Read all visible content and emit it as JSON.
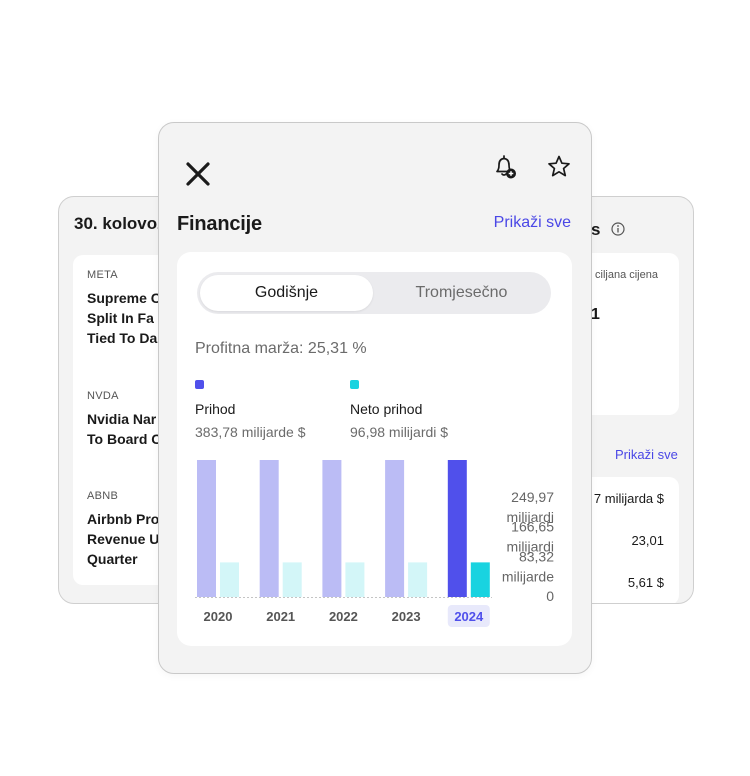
{
  "left_card": {
    "date": "30. kolovoz",
    "news": [
      {
        "ticker": "META",
        "headline": "Supreme C\nSplit In Fa\nTied To Da"
      },
      {
        "ticker": "NVDA",
        "headline": "Nvidia Nar\nTo Board C"
      },
      {
        "ticker": "ABNB",
        "headline": "Airbnb Pro\nRevenue U\nQuarter"
      }
    ]
  },
  "right_card": {
    "title_fragment": "s",
    "info_icon": "info-icon",
    "target_label": "ciljana cijena",
    "target_value": "1",
    "show_all": "Prikaži sve",
    "values": [
      "7 milijarda $",
      "23,01",
      "5,61 $"
    ]
  },
  "main": {
    "icons": {
      "close": "close-icon",
      "bell": "bell-plus-icon",
      "star": "star-icon"
    },
    "title": "Financije",
    "show_all": "Prikaži sve",
    "segment": {
      "active": "Godišnje",
      "inactive": "Tromjesečno"
    },
    "margin_text": "Profitna marža: 25,31 %",
    "legend": [
      {
        "name": "Prihod",
        "value": "383,78 milijarde $",
        "color": "#5050eb"
      },
      {
        "name": "Neto prihod",
        "value": "96,98 milijardi $",
        "color": "#19d3e0"
      }
    ]
  },
  "chart_data": {
    "type": "bar",
    "categories": [
      "2020",
      "2021",
      "2022",
      "2023",
      "2024"
    ],
    "series": [
      {
        "name": "Prihod",
        "values": [
          383.78,
          383.78,
          383.78,
          383.78,
          383.78
        ]
      },
      {
        "name": "Neto prihod",
        "values": [
          96.98,
          96.98,
          96.98,
          96.98,
          96.98
        ]
      }
    ],
    "highlight_index": 4,
    "colors": {
      "revenue": "#bbbcf5",
      "revenue_active": "#5050eb",
      "net": "#d3f6f8",
      "net_active": "#19d3e0",
      "tick_active_bg": "#e8e9fb",
      "tick": "#555555"
    },
    "y_ticks": [
      {
        "value": 249.97,
        "label": [
          "249,97",
          "milijardi"
        ]
      },
      {
        "value": 166.65,
        "label": [
          "166,65",
          "milijardi"
        ]
      },
      {
        "value": 83.32,
        "label": [
          "83,32",
          "milijarde"
        ]
      },
      {
        "value": 0,
        "label": [
          "0"
        ]
      }
    ],
    "ylim": [
      0,
      383.78
    ]
  }
}
